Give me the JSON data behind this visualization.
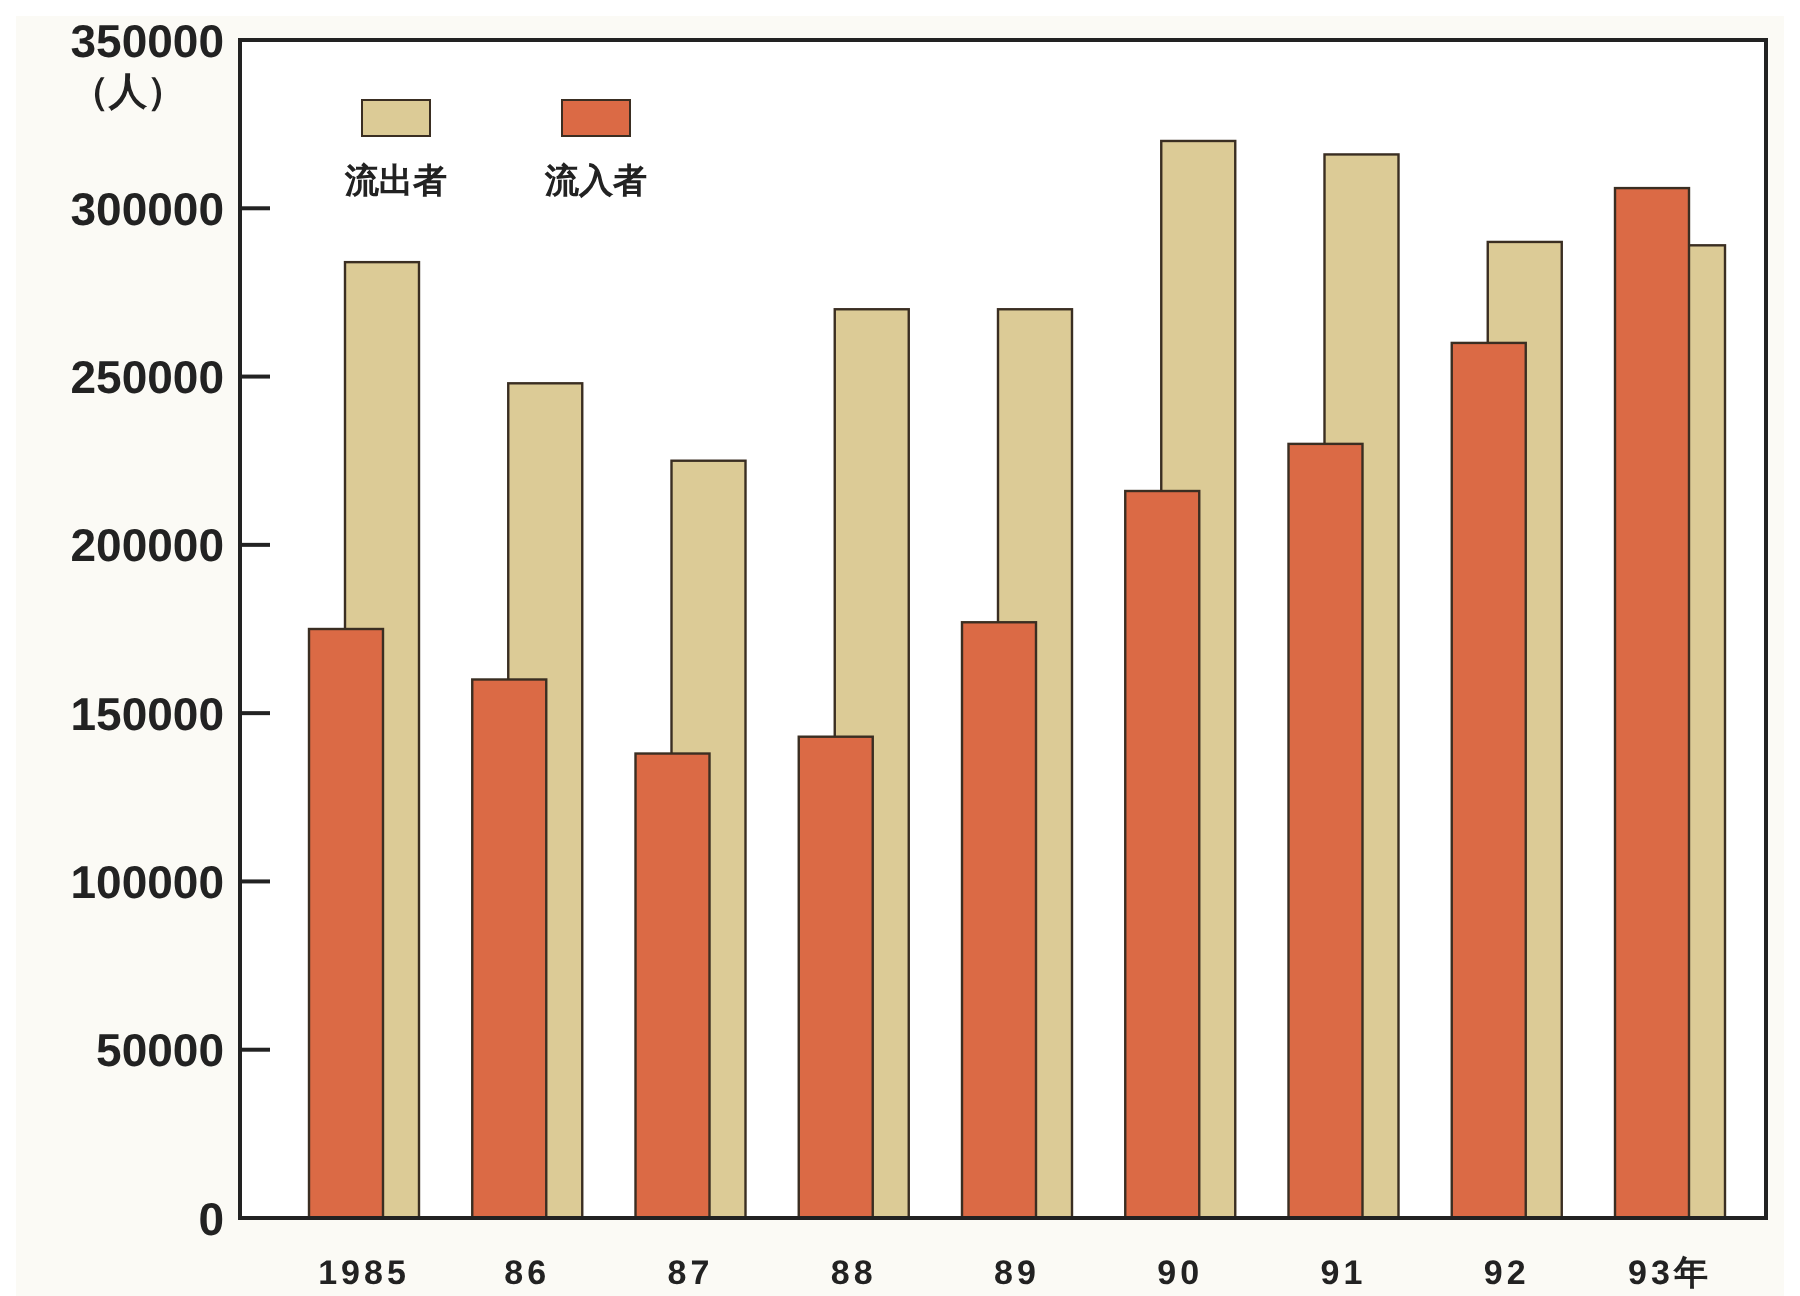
{
  "chart_data": {
    "type": "bar",
    "ylabel": "（人）",
    "categories": [
      "1985",
      "86",
      "87",
      "88",
      "89",
      "90",
      "91",
      "92",
      "93年"
    ],
    "series": [
      {
        "name": "流出者",
        "color": "#dccb96",
        "values": [
          284000,
          248000,
          225000,
          270000,
          270000,
          320000,
          316000,
          290000,
          289000
        ]
      },
      {
        "name": "流入者",
        "color": "#db6a45",
        "values": [
          175000,
          160000,
          138000,
          143000,
          177000,
          216000,
          230000,
          260000,
          306000
        ]
      }
    ],
    "ylim": [
      0,
      350000
    ],
    "yticks": [
      0,
      50000,
      100000,
      150000,
      200000,
      250000,
      300000,
      350000
    ],
    "legend": "top left"
  }
}
